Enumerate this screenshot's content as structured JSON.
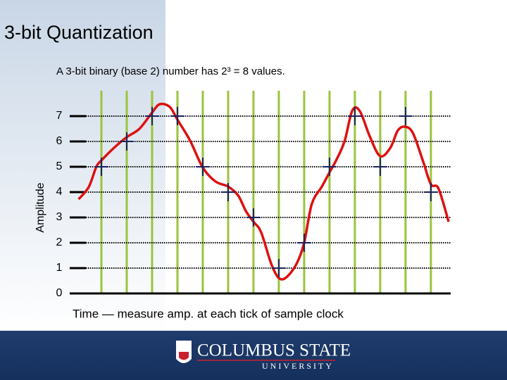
{
  "chart_data": {
    "type": "quantization",
    "title": "3-bit Quantization",
    "subtitle": "A 3-bit binary (base 2) number has 2³ = 8 values.",
    "ylabel": "Amplitude",
    "xlabel": "Time — measure amp. at each tick of sample clock",
    "xlim": [
      0,
      14.78
    ],
    "ylim": [
      0,
      8
    ],
    "yticks": [
      0,
      1,
      2,
      3,
      4,
      5,
      6,
      7
    ],
    "series": [
      {
        "color": "#dd1111",
        "x": [
          0.1,
          0.5,
          0.8,
          1.0,
          1.5,
          2.0,
          2.5,
          3.0,
          3.3,
          3.7,
          4.0,
          4.5,
          5.0,
          5.5,
          6.0,
          6.4,
          6.7,
          7.0,
          7.3,
          7.7,
          8.0,
          8.3,
          8.7,
          9.0,
          9.3,
          9.7,
          10.0,
          10.3,
          10.6,
          10.9,
          11.2,
          11.6,
          12.0,
          12.4,
          12.7,
          13.0,
          13.3,
          13.7,
          14.0,
          14.3,
          14.7
        ],
        "values": [
          3.72,
          4.2,
          5.0,
          5.25,
          5.75,
          6.17,
          6.5,
          7.14,
          7.47,
          7.36,
          6.86,
          6.03,
          4.97,
          4.42,
          4.22,
          3.86,
          3.25,
          2.83,
          2.42,
          1.17,
          0.61,
          0.64,
          1.17,
          2.0,
          3.53,
          4.22,
          4.78,
          5.33,
          6.03,
          7.22,
          7.19,
          6.17,
          5.42,
          5.75,
          6.44,
          6.58,
          6.31,
          5.19,
          4.31,
          4.14,
          2.83
        ]
      },
      {
        "color": "#1a2360",
        "x": [
          1,
          2,
          3,
          4,
          5,
          6,
          7,
          8,
          9,
          10,
          11,
          12,
          13,
          14
        ],
        "values": [
          5,
          6,
          7,
          7,
          5,
          4,
          3,
          1,
          2,
          5,
          7,
          5,
          7,
          4
        ]
      }
    ],
    "sample_line_color": "#9ac43c"
  },
  "footer": {
    "name": "COLUMBUS STATE",
    "sub": "UNIVERSITY"
  }
}
